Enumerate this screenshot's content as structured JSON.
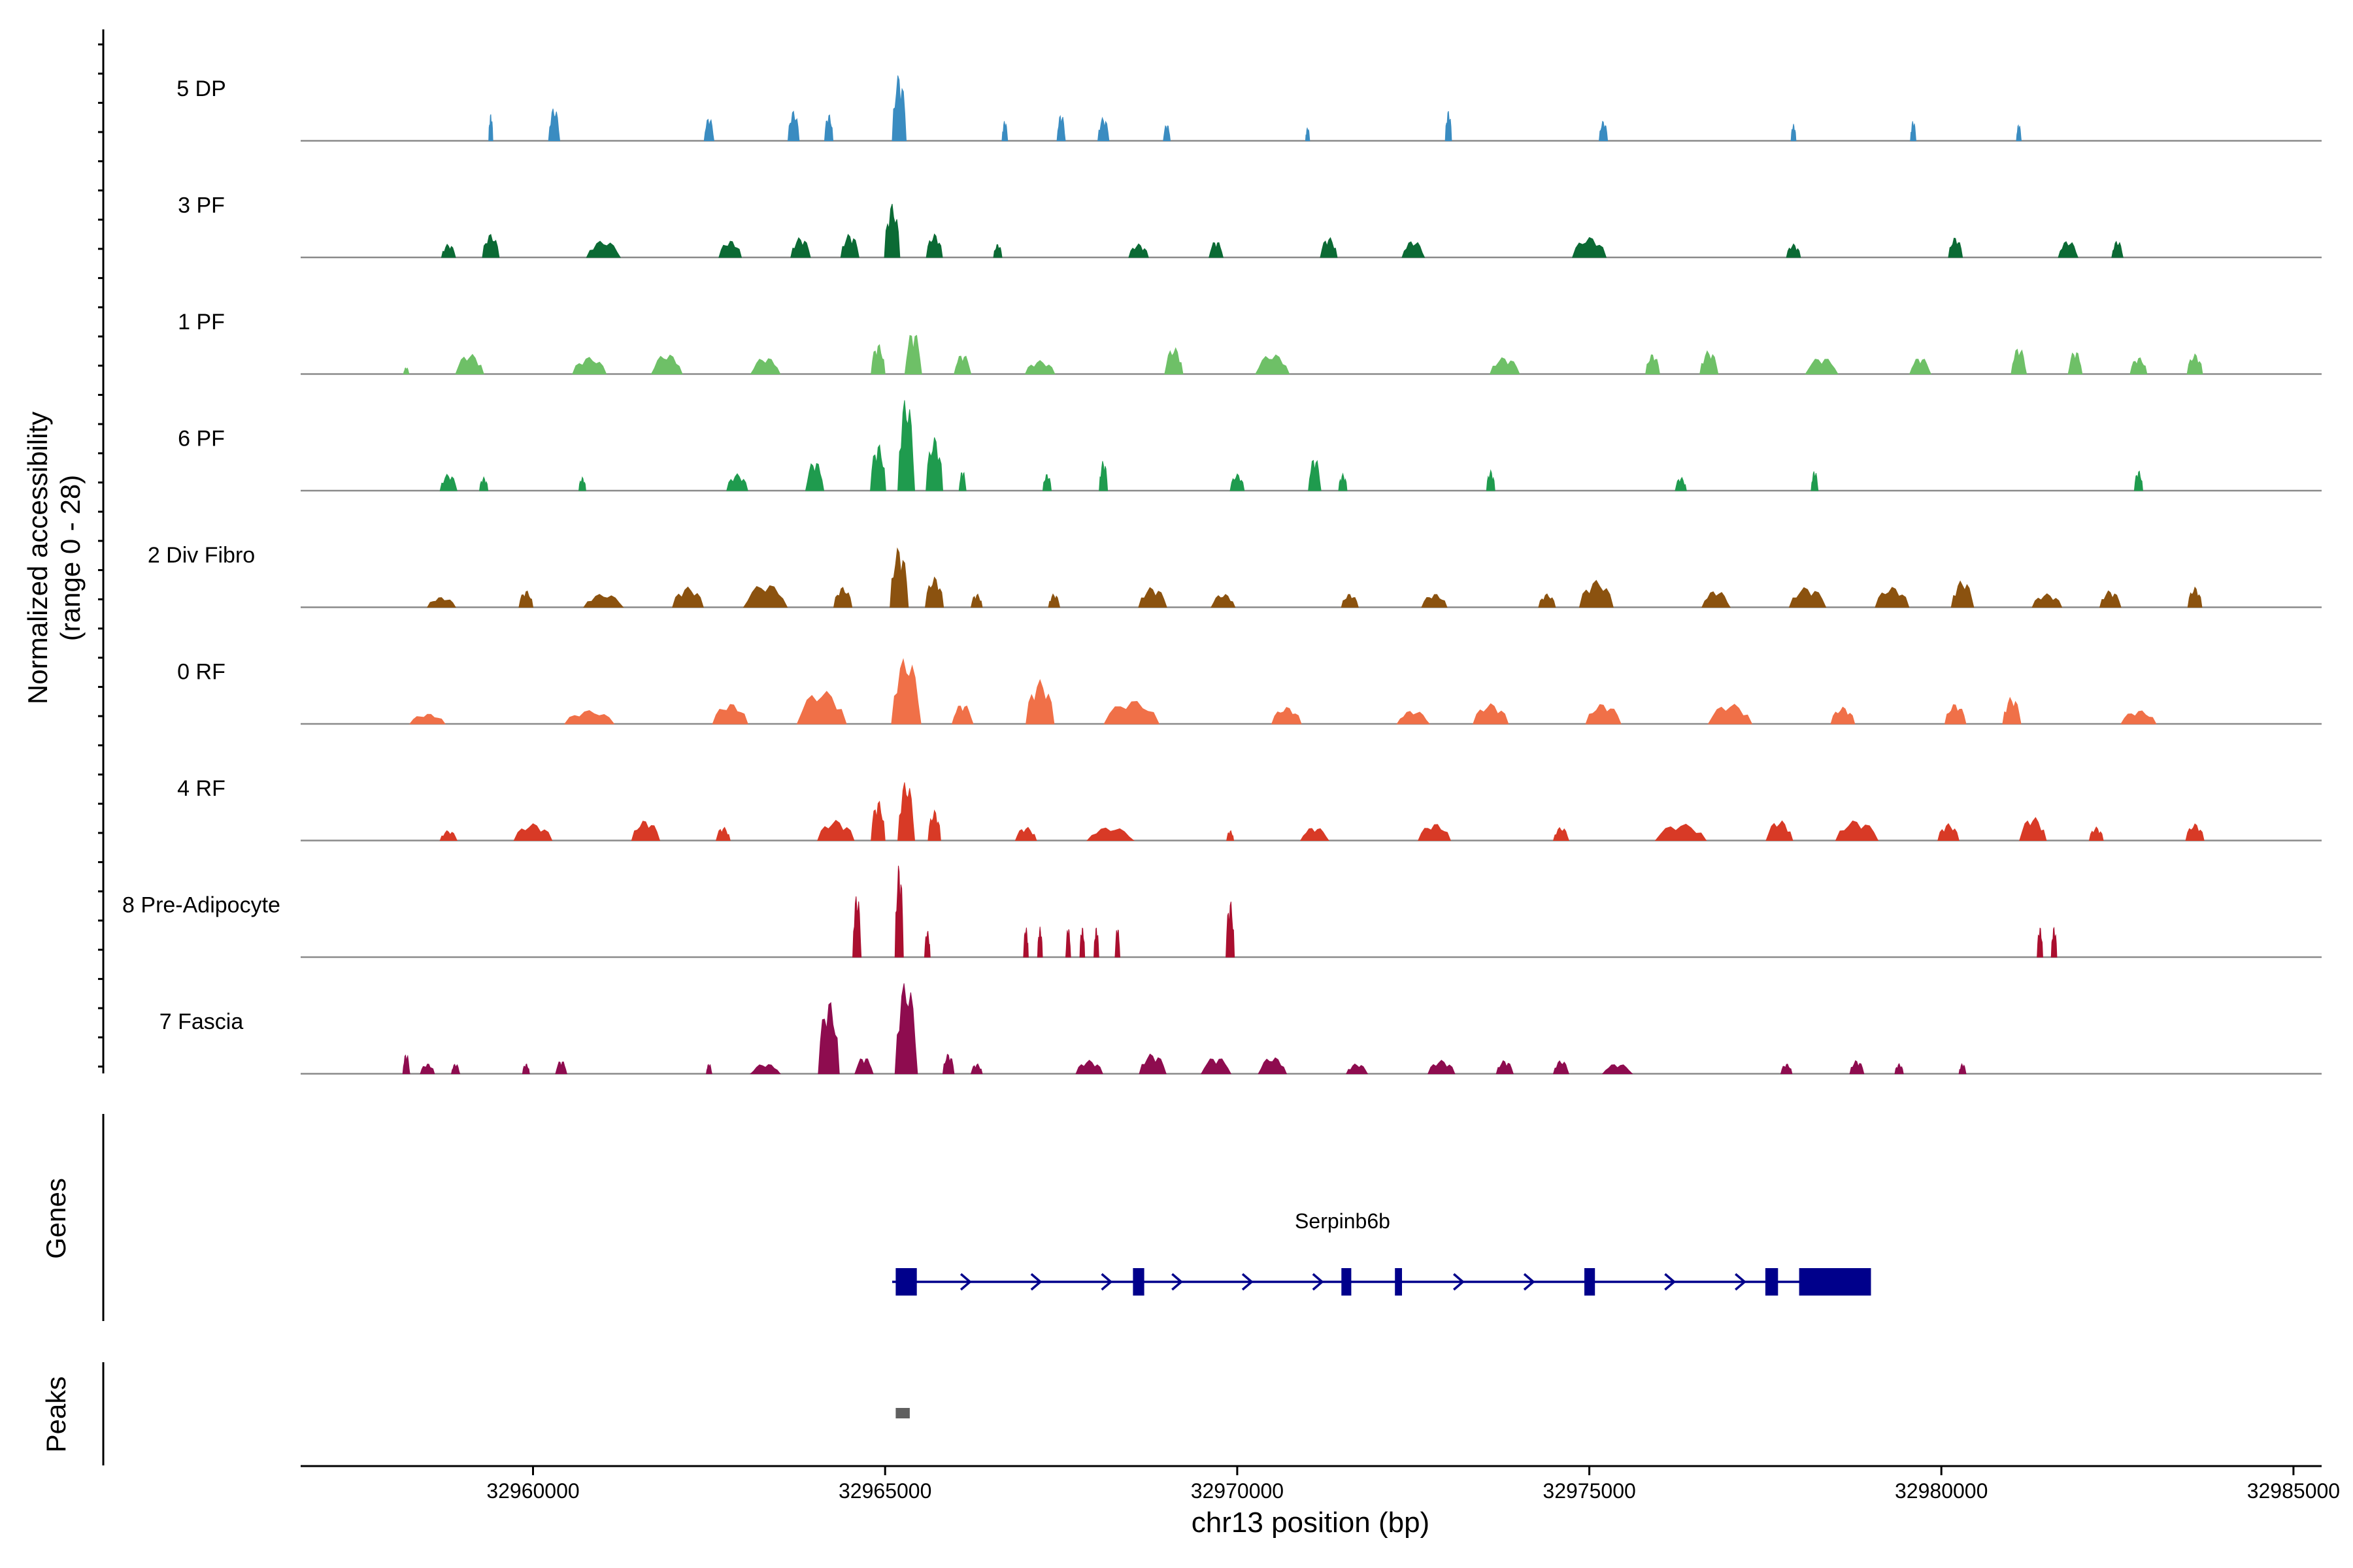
{
  "chart_data": {
    "type": "coverage",
    "region": "chr13:32957000-32985000",
    "ylabel_line1": "Normalized accessibility",
    "ylabel_line2": "(range 0 - 28)",
    "xlabel": "chr13 position (bp)",
    "xlim": [
      32956700,
      32985400
    ],
    "x_ticks": [
      32960000,
      32965000,
      32970000,
      32975000,
      32980000,
      32985000
    ],
    "x_tick_labels": [
      "32960000",
      "32965000",
      "32970000",
      "32975000",
      "32980000",
      "32985000"
    ],
    "y_max": 28,
    "tracks": [
      {
        "name": "5 DP",
        "color": "#3a8cc1",
        "peaks": [
          [
            32959400,
            8,
            60
          ],
          [
            32960300,
            10,
            160
          ],
          [
            32962500,
            7,
            140
          ],
          [
            32963700,
            9,
            160
          ],
          [
            32964200,
            8,
            120
          ],
          [
            32965200,
            20,
            200
          ],
          [
            32966700,
            6,
            80
          ],
          [
            32967500,
            8,
            120
          ],
          [
            32968100,
            7,
            160
          ],
          [
            32969000,
            5,
            100
          ],
          [
            32971000,
            4,
            60
          ],
          [
            32973000,
            9,
            90
          ],
          [
            32975200,
            6,
            120
          ],
          [
            32977900,
            5,
            70
          ],
          [
            32979600,
            6,
            80
          ],
          [
            32981100,
            5,
            70
          ]
        ]
      },
      {
        "name": "3 PF",
        "color": "#0b6a34",
        "peaks": [
          [
            32958800,
            4,
            200
          ],
          [
            32959400,
            7,
            240
          ],
          [
            32961000,
            5,
            480
          ],
          [
            32962800,
            5,
            320
          ],
          [
            32963800,
            6,
            280
          ],
          [
            32964500,
            7,
            260
          ],
          [
            32965100,
            16,
            220
          ],
          [
            32965700,
            7,
            230
          ],
          [
            32966600,
            4,
            120
          ],
          [
            32968600,
            4,
            280
          ],
          [
            32969700,
            5,
            200
          ],
          [
            32971300,
            6,
            240
          ],
          [
            32972500,
            5,
            320
          ],
          [
            32975000,
            6,
            480
          ],
          [
            32977900,
            4,
            200
          ],
          [
            32980200,
            6,
            200
          ],
          [
            32981800,
            5,
            280
          ],
          [
            32982500,
            5,
            160
          ]
        ]
      },
      {
        "name": "1 PF",
        "color": "#6ec067",
        "peaks": [
          [
            32958200,
            2,
            80
          ],
          [
            32959100,
            6,
            400
          ],
          [
            32960800,
            5,
            480
          ],
          [
            32961900,
            6,
            440
          ],
          [
            32963300,
            5,
            420
          ],
          [
            32964900,
            9,
            200
          ],
          [
            32965400,
            13,
            240
          ],
          [
            32966100,
            6,
            240
          ],
          [
            32967200,
            4,
            420
          ],
          [
            32969100,
            8,
            260
          ],
          [
            32970500,
            6,
            480
          ],
          [
            32973800,
            5,
            420
          ],
          [
            32975900,
            6,
            200
          ],
          [
            32976700,
            7,
            260
          ],
          [
            32978300,
            5,
            460
          ],
          [
            32979700,
            5,
            300
          ],
          [
            32981100,
            8,
            220
          ],
          [
            32981900,
            7,
            200
          ],
          [
            32982800,
            5,
            240
          ],
          [
            32983600,
            6,
            220
          ]
        ]
      },
      {
        "name": "6 PF",
        "color": "#1f9b4e",
        "peaks": [
          [
            32958800,
            5,
            240
          ],
          [
            32959300,
            4,
            120
          ],
          [
            32960700,
            4,
            100
          ],
          [
            32962900,
            5,
            300
          ],
          [
            32964000,
            9,
            260
          ],
          [
            32964900,
            14,
            220
          ],
          [
            32965300,
            28,
            240
          ],
          [
            32965700,
            16,
            240
          ],
          [
            32966100,
            6,
            100
          ],
          [
            32967300,
            5,
            120
          ],
          [
            32968100,
            9,
            120
          ],
          [
            32970000,
            5,
            200
          ],
          [
            32971100,
            10,
            180
          ],
          [
            32971500,
            5,
            120
          ],
          [
            32973600,
            6,
            120
          ],
          [
            32976300,
            4,
            160
          ],
          [
            32978200,
            6,
            100
          ],
          [
            32982800,
            6,
            120
          ]
        ]
      },
      {
        "name": "2 Div Fibro",
        "color": "#8b520f",
        "peaks": [
          [
            32958700,
            3,
            400
          ],
          [
            32959900,
            5,
            200
          ],
          [
            32961000,
            4,
            560
          ],
          [
            32962200,
            6,
            440
          ],
          [
            32963300,
            7,
            620
          ],
          [
            32964400,
            6,
            260
          ],
          [
            32965200,
            18,
            260
          ],
          [
            32965700,
            9,
            260
          ],
          [
            32966300,
            4,
            160
          ],
          [
            32967400,
            4,
            160
          ],
          [
            32968800,
            6,
            400
          ],
          [
            32969800,
            4,
            340
          ],
          [
            32971600,
            4,
            240
          ],
          [
            32972800,
            4,
            360
          ],
          [
            32974400,
            4,
            240
          ],
          [
            32975100,
            8,
            480
          ],
          [
            32976800,
            5,
            400
          ],
          [
            32978100,
            6,
            520
          ],
          [
            32979300,
            6,
            480
          ],
          [
            32980300,
            8,
            320
          ],
          [
            32981500,
            4,
            420
          ],
          [
            32982400,
            5,
            300
          ],
          [
            32983600,
            6,
            200
          ]
        ]
      },
      {
        "name": "0 RF",
        "color": "#f07048",
        "peaks": [
          [
            32958500,
            3,
            500
          ],
          [
            32960800,
            4,
            700
          ],
          [
            32962800,
            6,
            500
          ],
          [
            32964100,
            10,
            700
          ],
          [
            32965300,
            20,
            420
          ],
          [
            32966100,
            6,
            300
          ],
          [
            32967200,
            13,
            400
          ],
          [
            32968500,
            7,
            780
          ],
          [
            32970700,
            5,
            420
          ],
          [
            32972500,
            4,
            460
          ],
          [
            32973600,
            6,
            500
          ],
          [
            32975200,
            6,
            500
          ],
          [
            32977000,
            6,
            620
          ],
          [
            32978600,
            5,
            340
          ],
          [
            32980200,
            6,
            300
          ],
          [
            32981000,
            8,
            260
          ],
          [
            32982800,
            4,
            500
          ]
        ]
      },
      {
        "name": "4 RF",
        "color": "#d83a26",
        "peaks": [
          [
            32958800,
            3,
            240
          ],
          [
            32960000,
            5,
            540
          ],
          [
            32961600,
            6,
            400
          ],
          [
            32962700,
            4,
            200
          ],
          [
            32964300,
            6,
            520
          ],
          [
            32964900,
            12,
            200
          ],
          [
            32965300,
            18,
            240
          ],
          [
            32965700,
            9,
            180
          ],
          [
            32967000,
            4,
            300
          ],
          [
            32968200,
            4,
            660
          ],
          [
            32969900,
            3,
            100
          ],
          [
            32971100,
            4,
            400
          ],
          [
            32972800,
            5,
            460
          ],
          [
            32974600,
            4,
            220
          ],
          [
            32976300,
            5,
            720
          ],
          [
            32977700,
            6,
            380
          ],
          [
            32978800,
            6,
            600
          ],
          [
            32980100,
            5,
            300
          ],
          [
            32981300,
            7,
            380
          ],
          [
            32982200,
            4,
            200
          ],
          [
            32983600,
            5,
            260
          ]
        ]
      },
      {
        "name": "8 Pre-Adipocyte",
        "color": "#aa0f2f",
        "peaks": [
          [
            32964600,
            19,
            120
          ],
          [
            32965200,
            28,
            120
          ],
          [
            32965600,
            8,
            80
          ],
          [
            32967000,
            9,
            70
          ],
          [
            32967200,
            9,
            70
          ],
          [
            32967600,
            9,
            70
          ],
          [
            32967800,
            9,
            70
          ],
          [
            32968000,
            9,
            70
          ],
          [
            32968300,
            9,
            70
          ],
          [
            32969900,
            17,
            120
          ],
          [
            32981400,
            9,
            80
          ],
          [
            32981600,
            9,
            80
          ]
        ]
      },
      {
        "name": "7 Fascia",
        "color": "#8e0c4f",
        "peaks": [
          [
            32958200,
            6,
            100
          ],
          [
            32958500,
            3,
            200
          ],
          [
            32958900,
            3,
            120
          ],
          [
            32959900,
            3,
            100
          ],
          [
            32960400,
            4,
            160
          ],
          [
            32962500,
            3,
            80
          ],
          [
            32963300,
            3,
            420
          ],
          [
            32964200,
            22,
            300
          ],
          [
            32964700,
            5,
            260
          ],
          [
            32965300,
            28,
            320
          ],
          [
            32965900,
            6,
            160
          ],
          [
            32966300,
            3,
            160
          ],
          [
            32967900,
            4,
            380
          ],
          [
            32968800,
            6,
            380
          ],
          [
            32969700,
            5,
            420
          ],
          [
            32970500,
            5,
            400
          ],
          [
            32971700,
            3,
            300
          ],
          [
            32972900,
            4,
            380
          ],
          [
            32973800,
            4,
            240
          ],
          [
            32974600,
            4,
            220
          ],
          [
            32975400,
            3,
            420
          ],
          [
            32977800,
            3,
            160
          ],
          [
            32978800,
            4,
            200
          ],
          [
            32979400,
            3,
            120
          ],
          [
            32980300,
            3,
            100
          ]
        ]
      }
    ],
    "genes_label": "Genes",
    "peaks_label": "Peaks",
    "gene": {
      "name": "Serpinb6b",
      "strand": "+",
      "start": 32965100,
      "end": 32979000,
      "color": "#00008b",
      "exons": [
        [
          32965150,
          32965450
        ],
        [
          32968520,
          32968680
        ],
        [
          32971480,
          32971620
        ],
        [
          32972240,
          32972340
        ],
        [
          32974930,
          32975080
        ],
        [
          32977500,
          32977680
        ],
        [
          32977980,
          32979000
        ]
      ]
    },
    "peak_regions": [
      [
        32965150,
        32965350
      ]
    ],
    "peak_color": "#606060"
  }
}
